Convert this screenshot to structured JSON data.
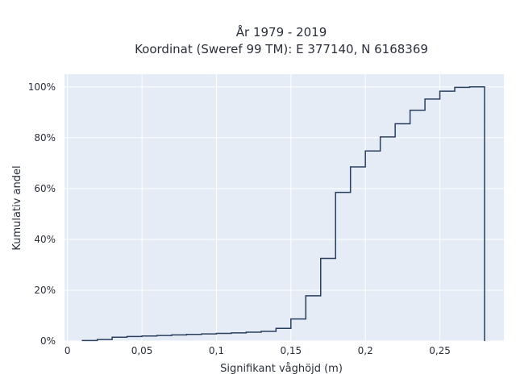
{
  "chart_data": {
    "type": "line",
    "subtype": "cumulative-step-histogram",
    "title_line1": "År 1979 - 2019",
    "title_line2": "Koordinat (Sweref 99 TM): E 377140, N 6168369",
    "xlabel": "Signifikant våghöjd (m)",
    "ylabel": "Kumulativ andel",
    "xlim": [
      -0.002,
      0.293
    ],
    "ylim": [
      0,
      1.05
    ],
    "grid": true,
    "x_ticks": [
      {
        "value": 0,
        "label": "0"
      },
      {
        "value": 0.05,
        "label": "0,05"
      },
      {
        "value": 0.1,
        "label": "0,1"
      },
      {
        "value": 0.15,
        "label": "0,15"
      },
      {
        "value": 0.2,
        "label": "0,2"
      },
      {
        "value": 0.25,
        "label": "0,25"
      }
    ],
    "y_ticks": [
      {
        "value": 0,
        "label": "0%"
      },
      {
        "value": 0.2,
        "label": "20%"
      },
      {
        "value": 0.4,
        "label": "40%"
      },
      {
        "value": 0.6,
        "label": "60%"
      },
      {
        "value": 0.8,
        "label": "80%"
      },
      {
        "value": 1.0,
        "label": "100%"
      }
    ],
    "bin_edges": [
      0.01,
      0.02,
      0.03,
      0.04,
      0.05,
      0.06,
      0.07,
      0.08,
      0.09,
      0.1,
      0.11,
      0.12,
      0.13,
      0.14,
      0.15,
      0.16,
      0.17,
      0.18,
      0.19,
      0.2,
      0.21,
      0.22,
      0.23,
      0.24,
      0.25,
      0.26,
      0.27,
      0.28
    ],
    "values": [
      0.002,
      0.006,
      0.015,
      0.018,
      0.02,
      0.022,
      0.024,
      0.026,
      0.028,
      0.03,
      0.032,
      0.035,
      0.038,
      0.05,
      0.087,
      0.178,
      0.325,
      0.585,
      0.685,
      0.748,
      0.803,
      0.855,
      0.908,
      0.952,
      0.983,
      0.998,
      1.0
    ],
    "line_color": "#2a3f5f",
    "plot_bg": "#e5ecf6",
    "grid_color": "#ffffff"
  }
}
